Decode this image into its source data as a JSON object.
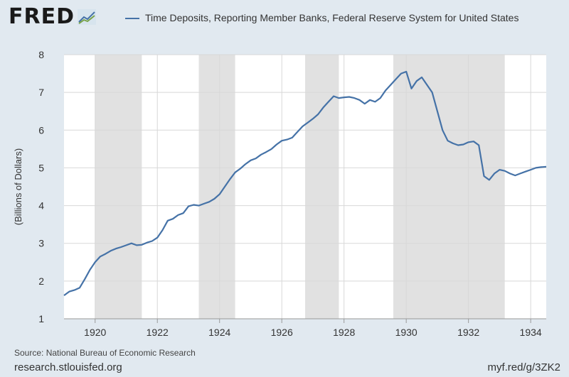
{
  "logo": {
    "text": "FRED"
  },
  "colors": {
    "line": "#4572a7",
    "recession": "#e1e1e1",
    "plot_bg": "#ffffff",
    "page_bg": "#e1e9f0",
    "grid": "#d8d8d8"
  },
  "footer": {
    "source": "Source: National Bureau of Economic Research",
    "url": "research.stlouisfed.org",
    "short_link": "myf.red/g/3ZK2"
  },
  "chart_data": {
    "type": "line",
    "title": "",
    "xlabel": "",
    "ylabel": "(Billions of Dollars)",
    "xlim": [
      "1919-01",
      "1934-07"
    ],
    "ylim": [
      1,
      8
    ],
    "x_ticks": [
      "1920",
      "1922",
      "1924",
      "1926",
      "1928",
      "1930",
      "1932",
      "1934"
    ],
    "y_ticks": [
      "1",
      "2",
      "3",
      "4",
      "5",
      "6",
      "7",
      "8"
    ],
    "grid": true,
    "legend": "top",
    "recessions": [
      [
        "1920-01",
        "1921-07"
      ],
      [
        "1923-05",
        "1924-07"
      ],
      [
        "1926-10",
        "1927-11"
      ],
      [
        "1929-08",
        "1933-03"
      ]
    ],
    "series": [
      {
        "name": "Time Deposits, Reporting Member Banks, Federal Reserve System for United States",
        "x": [
          "1919-01",
          "1919-03",
          "1919-05",
          "1919-07",
          "1919-09",
          "1919-11",
          "1920-01",
          "1920-03",
          "1920-05",
          "1920-07",
          "1920-09",
          "1920-11",
          "1921-01",
          "1921-03",
          "1921-05",
          "1921-07",
          "1921-09",
          "1921-11",
          "1922-01",
          "1922-03",
          "1922-05",
          "1922-07",
          "1922-09",
          "1922-11",
          "1923-01",
          "1923-03",
          "1923-05",
          "1923-07",
          "1923-09",
          "1923-11",
          "1924-01",
          "1924-03",
          "1924-05",
          "1924-07",
          "1924-09",
          "1924-11",
          "1925-01",
          "1925-03",
          "1925-05",
          "1925-07",
          "1925-09",
          "1925-11",
          "1926-01",
          "1926-03",
          "1926-05",
          "1926-07",
          "1926-09",
          "1926-11",
          "1927-01",
          "1927-03",
          "1927-05",
          "1927-07",
          "1927-09",
          "1927-11",
          "1928-01",
          "1928-03",
          "1928-05",
          "1928-07",
          "1928-09",
          "1928-11",
          "1929-01",
          "1929-03",
          "1929-05",
          "1929-07",
          "1929-09",
          "1929-11",
          "1930-01",
          "1930-03",
          "1930-05",
          "1930-07",
          "1930-09",
          "1930-11",
          "1931-01",
          "1931-03",
          "1931-05",
          "1931-07",
          "1931-09",
          "1931-11",
          "1932-01",
          "1932-03",
          "1932-05",
          "1932-07",
          "1932-09",
          "1932-11",
          "1933-01",
          "1933-03",
          "1933-05",
          "1933-07",
          "1933-09",
          "1933-11",
          "1934-01",
          "1934-03",
          "1934-05",
          "1934-07"
        ],
        "values": [
          1.62,
          1.72,
          1.76,
          1.82,
          2.05,
          2.3,
          2.5,
          2.65,
          2.72,
          2.8,
          2.86,
          2.9,
          2.95,
          3.0,
          2.95,
          2.96,
          3.02,
          3.06,
          3.15,
          3.35,
          3.6,
          3.65,
          3.75,
          3.8,
          3.98,
          4.02,
          4.0,
          4.05,
          4.1,
          4.18,
          4.3,
          4.5,
          4.7,
          4.88,
          4.98,
          5.1,
          5.2,
          5.25,
          5.35,
          5.42,
          5.5,
          5.62,
          5.72,
          5.75,
          5.8,
          5.95,
          6.1,
          6.2,
          6.3,
          6.42,
          6.6,
          6.75,
          6.9,
          6.85,
          6.87,
          6.88,
          6.85,
          6.8,
          6.7,
          6.8,
          6.75,
          6.85,
          7.05,
          7.2,
          7.35,
          7.5,
          7.55,
          7.1,
          7.3,
          7.4,
          7.2,
          7.0,
          6.5,
          6.0,
          5.72,
          5.65,
          5.6,
          5.62,
          5.68,
          5.7,
          5.6,
          4.78,
          4.68,
          4.85,
          4.95,
          4.92,
          4.85,
          4.8,
          4.85,
          4.9,
          4.95,
          5.0,
          5.02,
          5.03
        ]
      }
    ]
  }
}
